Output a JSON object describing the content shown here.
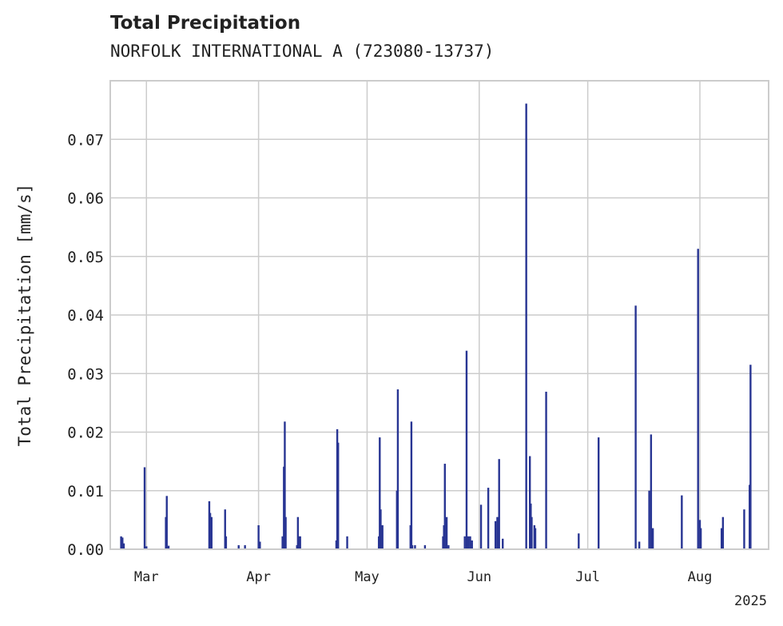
{
  "chart_data": {
    "type": "bar",
    "title": "Total Precipitation",
    "subtitle": "NORFOLK INTERNATIONAL A (723080-13737)",
    "xlabel": "",
    "ylabel": "Total Precipitation [mm/s]",
    "x_year_label": "2025",
    "xlim": [
      "2025-02-19",
      "2025-08-20"
    ],
    "ylim": [
      0,
      0.08
    ],
    "grid": true,
    "bar_color": "#283593",
    "y_ticks": [
      {
        "value": 0.0,
        "label": "0.00"
      },
      {
        "value": 0.01,
        "label": "0.01"
      },
      {
        "value": 0.02,
        "label": "0.02"
      },
      {
        "value": 0.03,
        "label": "0.03"
      },
      {
        "value": 0.04,
        "label": "0.04"
      },
      {
        "value": 0.05,
        "label": "0.05"
      },
      {
        "value": 0.06,
        "label": "0.06"
      },
      {
        "value": 0.07,
        "label": "0.07"
      }
    ],
    "x_ticks": [
      {
        "date": "2025-03-01",
        "label": "Mar"
      },
      {
        "date": "2025-04-01",
        "label": "Apr"
      },
      {
        "date": "2025-05-01",
        "label": "May"
      },
      {
        "date": "2025-06-01",
        "label": "Jun"
      },
      {
        "date": "2025-07-01",
        "label": "Jul"
      },
      {
        "date": "2025-08-01",
        "label": "Aug"
      }
    ],
    "series": [
      {
        "x": [
          "2025-02-22T00:00",
          "2025-02-22T09:00",
          "2025-02-22T18:00",
          "2025-02-28T12:00",
          "2025-03-01T00:00",
          "2025-03-06T09:00",
          "2025-03-06T15:00",
          "2025-03-07T03:00",
          "2025-03-18T09:00",
          "2025-03-18T15:00",
          "2025-03-19T00:00",
          "2025-03-22T18:00",
          "2025-03-23T00:00",
          "2025-03-26T12:00",
          "2025-03-28T06:00",
          "2025-04-01T00:00",
          "2025-04-01T09:00",
          "2025-04-07T15:00",
          "2025-04-08T00:00",
          "2025-04-08T06:00",
          "2025-04-08T12:00",
          "2025-04-11T15:00",
          "2025-04-11T21:00",
          "2025-04-12T06:00",
          "2025-04-12T12:00",
          "2025-04-22T12:00",
          "2025-04-22T18:00",
          "2025-04-23T00:00",
          "2025-04-25T12:00",
          "2025-05-04T06:00",
          "2025-05-04T12:00",
          "2025-05-04T18:00",
          "2025-05-05T06:00",
          "2025-05-09T06:00",
          "2025-05-09T12:00",
          "2025-05-13T00:00",
          "2025-05-13T06:00",
          "2025-05-13T12:00",
          "2025-05-14T06:00",
          "2025-05-17T00:00",
          "2025-05-22T00:00",
          "2025-05-22T06:00",
          "2025-05-22T12:00",
          "2025-05-23T00:00",
          "2025-05-23T12:00",
          "2025-05-28T00:00",
          "2025-05-28T12:00",
          "2025-05-29T00:00",
          "2025-05-29T12:00",
          "2025-05-30T00:00",
          "2025-06-01T12:00",
          "2025-06-03T12:00",
          "2025-06-05T12:00",
          "2025-06-06T00:00",
          "2025-06-06T12:00",
          "2025-06-07T12:00",
          "2025-06-14T00:00",
          "2025-06-15T00:00",
          "2025-06-15T06:00",
          "2025-06-15T12:00",
          "2025-06-16T06:00",
          "2025-06-16T12:00",
          "2025-06-19T12:00",
          "2025-06-28T12:00",
          "2025-07-04T00:00",
          "2025-07-14T06:00",
          "2025-07-15T06:00",
          "2025-07-18T00:00",
          "2025-07-18T12:00",
          "2025-07-19T00:00",
          "2025-07-27T00:00",
          "2025-07-31T12:00",
          "2025-08-01T00:00",
          "2025-08-01T06:00",
          "2025-08-07T00:00",
          "2025-08-07T09:00",
          "2025-08-13T06:00",
          "2025-08-14T18:00",
          "2025-08-15T00:00"
        ],
        "values": [
          0.0022,
          0.002,
          0.001,
          0.014,
          0.0005,
          0.0055,
          0.0091,
          0.0006,
          0.0082,
          0.0062,
          0.0055,
          0.0068,
          0.0022,
          0.0007,
          0.0007,
          0.0041,
          0.0013,
          0.0022,
          0.0141,
          0.0218,
          0.0055,
          0.0007,
          0.0055,
          0.0022,
          0.0022,
          0.0015,
          0.0205,
          0.0182,
          0.0022,
          0.0022,
          0.0191,
          0.0068,
          0.0041,
          0.01,
          0.0273,
          0.0041,
          0.0218,
          0.0007,
          0.0007,
          0.0007,
          0.0022,
          0.0041,
          0.0146,
          0.0055,
          0.0007,
          0.0022,
          0.0339,
          0.0022,
          0.0022,
          0.0015,
          0.0076,
          0.0105,
          0.0048,
          0.0055,
          0.0154,
          0.0018,
          0.0761,
          0.0159,
          0.0078,
          0.0055,
          0.0041,
          0.0036,
          0.0269,
          0.0027,
          0.0191,
          0.0416,
          0.0013,
          0.01,
          0.0196,
          0.0036,
          0.0092,
          0.0513,
          0.005,
          0.0036,
          0.0036,
          0.0055,
          0.0068,
          0.011,
          0.0315
        ]
      }
    ]
  }
}
